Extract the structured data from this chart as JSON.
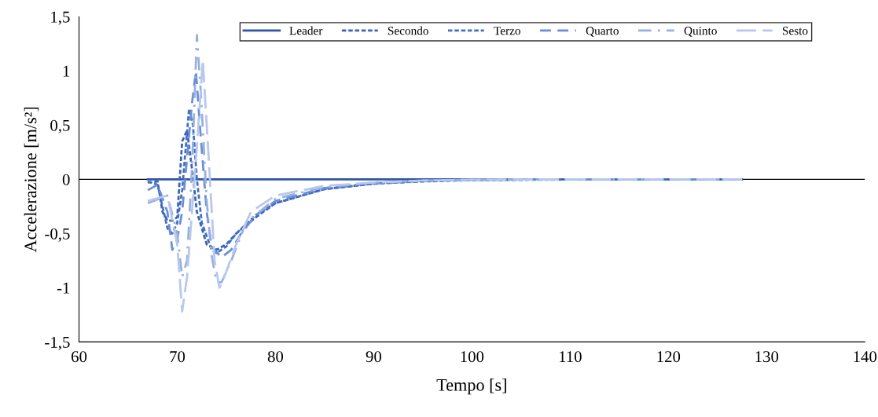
{
  "chart_data": {
    "type": "line",
    "xlabel": "Tempo [s]",
    "ylabel": "Accelerazione [m/s²]",
    "xlim": [
      60,
      140
    ],
    "xticks": [
      60,
      70,
      80,
      90,
      100,
      110,
      120,
      130,
      140
    ],
    "ylim": [
      -1.5,
      1.5
    ],
    "yticks": [
      {
        "value": -1.5,
        "label": "-1,5"
      },
      {
        "value": -1,
        "label": "-1"
      },
      {
        "value": -0.5,
        "label": "-0,5"
      },
      0,
      {
        "value": 0.5,
        "label": "0,5"
      },
      1,
      {
        "value": 1.5,
        "label": "1,5"
      }
    ],
    "grid": false,
    "legend": "top right",
    "marker": "none",
    "ref_lines": [
      {
        "axis": "y",
        "value": 0,
        "color": "#000000",
        "line_style": "solid"
      }
    ],
    "series": [
      {
        "name": "Leader",
        "color": "#2f55a4",
        "line_style": "solid",
        "x": [
          67,
          127.5
        ],
        "values": [
          0,
          0
        ]
      },
      {
        "name": "Secondo",
        "color": "#3a62b6",
        "line_style": "dotted",
        "x": [
          67,
          68,
          68.5,
          69,
          69.5,
          70,
          70.5,
          71,
          71.5,
          72,
          73,
          74,
          75,
          76,
          78,
          80,
          85,
          90,
          95,
          100,
          110,
          127.5
        ],
        "values": [
          -0.03,
          -0.02,
          -0.3,
          -0.38,
          -0.38,
          -0.35,
          0.35,
          0.45,
          0.1,
          -0.3,
          -0.6,
          -0.65,
          -0.6,
          -0.5,
          -0.35,
          -0.22,
          -0.09,
          -0.04,
          -0.015,
          -0.005,
          0,
          0
        ]
      },
      {
        "name": "Terzo",
        "color": "#4470c4",
        "line_style": "dotted",
        "x": [
          67,
          68,
          69,
          69.5,
          70,
          70.5,
          71.2,
          71.6,
          72,
          72.5,
          73.5,
          74,
          75,
          76,
          78,
          80,
          85,
          90,
          95,
          100,
          110,
          127.5
        ],
        "values": [
          -0.02,
          -0.05,
          -0.45,
          -0.5,
          -0.4,
          -0.1,
          0.65,
          0.5,
          0,
          -0.4,
          -0.65,
          -0.68,
          -0.62,
          -0.5,
          -0.33,
          -0.22,
          -0.09,
          -0.04,
          -0.02,
          -0.008,
          -0.002,
          0
        ]
      },
      {
        "name": "Quarto",
        "color": "#6b8fd6",
        "line_style": "dashed",
        "x": [
          67,
          68,
          69,
          69.5,
          70,
          70.5,
          71.5,
          71.9,
          72.3,
          73,
          73.5,
          74.5,
          75.5,
          76.5,
          78,
          80,
          85,
          90,
          95,
          100,
          110,
          127.5
        ],
        "values": [
          -0.1,
          -0.05,
          -0.3,
          -0.65,
          -0.55,
          -0.3,
          0.7,
          1.0,
          0.5,
          -0.3,
          -0.62,
          -0.72,
          -0.65,
          -0.5,
          -0.33,
          -0.2,
          -0.08,
          -0.035,
          -0.015,
          -0.005,
          0,
          0
        ]
      },
      {
        "name": "Quinto",
        "color": "#98b0e0",
        "line_style": "dashdot",
        "x": [
          67,
          69,
          70,
          70.5,
          71,
          71.5,
          72,
          72.4,
          73,
          73.5,
          74,
          74.5,
          75.5,
          77,
          80,
          85,
          90,
          95,
          100,
          110,
          127.5
        ],
        "values": [
          -0.22,
          -0.15,
          -0.5,
          -0.9,
          -0.75,
          0.1,
          1.33,
          0.8,
          -0.2,
          -0.7,
          -0.95,
          -0.95,
          -0.75,
          -0.4,
          -0.18,
          -0.07,
          -0.03,
          -0.012,
          -0.004,
          0,
          0
        ]
      },
      {
        "name": "Sesto",
        "color": "#b8c8ec",
        "line_style": "longdash",
        "x": [
          67,
          69,
          70,
          70.5,
          71,
          72,
          72.6,
          73.2,
          73.8,
          74.3,
          75,
          76,
          77.5,
          80,
          85,
          90,
          95,
          100,
          110,
          127.5
        ],
        "values": [
          -0.2,
          -0.15,
          -0.6,
          -1.22,
          -0.9,
          0.3,
          1.1,
          0.2,
          -0.75,
          -1.0,
          -0.85,
          -0.6,
          -0.3,
          -0.15,
          -0.06,
          -0.03,
          -0.012,
          -0.004,
          0,
          0
        ]
      }
    ]
  }
}
